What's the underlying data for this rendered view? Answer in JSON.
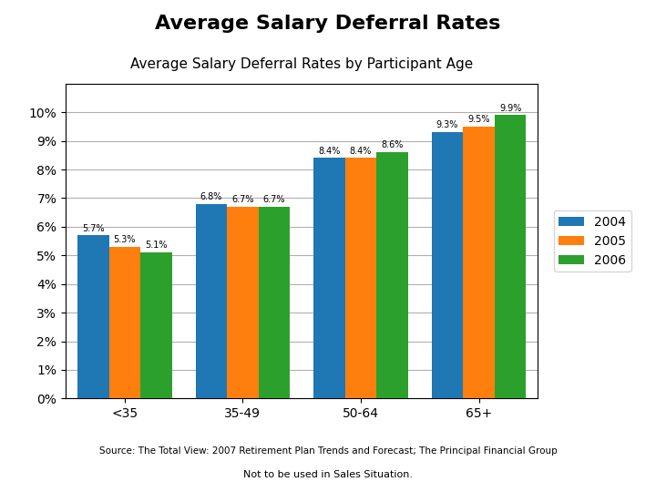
{
  "chart_data": {
    "type": "bar",
    "title": "Average Salary Deferral Rates",
    "subtitle": "Average Salary Deferral Rates by Participant Age",
    "categories": [
      "<35",
      "35-49",
      "50-64",
      "65+"
    ],
    "series": [
      {
        "name": "2004",
        "values": [
          5.7,
          6.8,
          8.4,
          9.3
        ],
        "value_labels": [
          "5.7%",
          "6.8%",
          "8.4%",
          "9.3%"
        ]
      },
      {
        "name": "2005",
        "values": [
          5.3,
          6.7,
          8.4,
          9.5
        ],
        "value_labels": [
          "5.3%",
          "6.7%",
          "8.4%",
          "9.5%"
        ]
      },
      {
        "name": "2006",
        "values": [
          5.1,
          6.7,
          8.6,
          9.9
        ],
        "value_labels": [
          "5.1%",
          "6.7%",
          "8.6%",
          "9.9%"
        ]
      }
    ],
    "ylim": [
      0,
      11
    ],
    "yticks": [
      {
        "value": 0,
        "label": "0%"
      },
      {
        "value": 1,
        "label": "1%"
      },
      {
        "value": 2,
        "label": "2%"
      },
      {
        "value": 3,
        "label": "3%"
      },
      {
        "value": 4,
        "label": "4%"
      },
      {
        "value": 5,
        "label": "5%"
      },
      {
        "value": 6,
        "label": "6%"
      },
      {
        "value": 7,
        "label": "7%"
      },
      {
        "value": 8,
        "label": "8%"
      },
      {
        "value": 9,
        "label": "9%"
      },
      {
        "value": 10,
        "label": "10%"
      }
    ],
    "grid": true,
    "legend": "center left",
    "data_labels": true,
    "annotations": [
      "Source: The Total View: 2007 Retirement Plan Trends and Forecast; The Principal Financial Group",
      "Not to be used in Sales Situation."
    ]
  }
}
